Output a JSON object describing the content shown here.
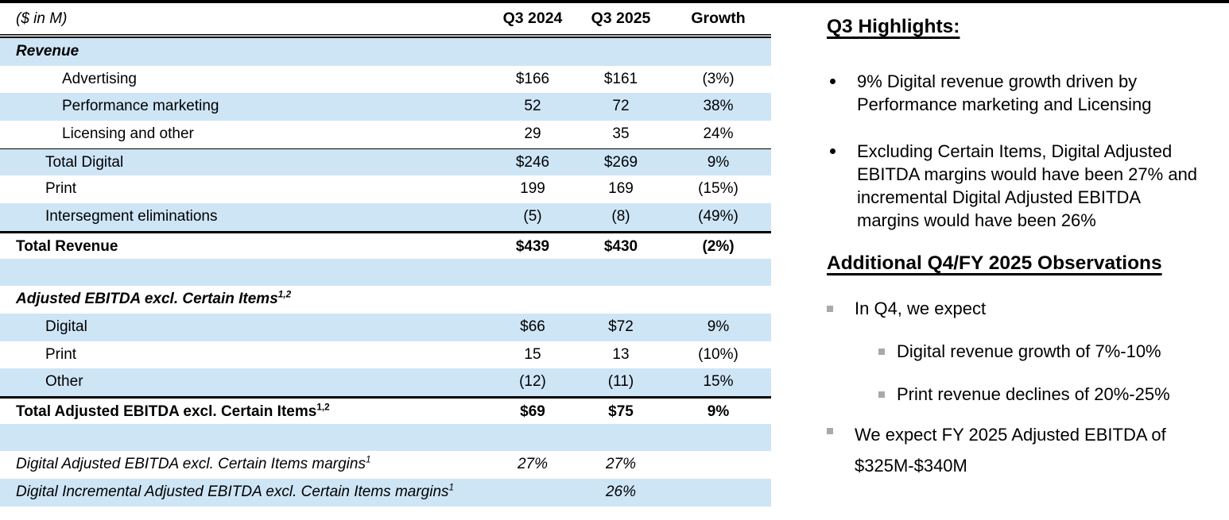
{
  "page": {
    "top_bar_color": "#000000",
    "background": "#ffffff"
  },
  "table": {
    "note": "($ in M)",
    "columns": [
      "Q3 2024",
      "Q3 2025",
      "Growth"
    ],
    "colors": {
      "stripe": "#cee5f6",
      "line": "#000000"
    },
    "rows": [
      {
        "label": "Revenue",
        "sup": "",
        "indent": 0,
        "bg": "blue",
        "style": "bold-italic",
        "border_top": "none",
        "values": [
          "",
          "",
          ""
        ]
      },
      {
        "label": "Advertising",
        "sup": "",
        "indent": 2,
        "bg": "white",
        "style": "normal",
        "border_top": "none",
        "values": [
          "$166",
          "$161",
          "(3%)"
        ]
      },
      {
        "label": "Performance marketing",
        "sup": "",
        "indent": 2,
        "bg": "blue",
        "style": "normal",
        "border_top": "none",
        "values": [
          "52",
          "72",
          "38%"
        ]
      },
      {
        "label": "Licensing and other",
        "sup": "",
        "indent": 2,
        "bg": "white",
        "style": "normal",
        "border_top": "none",
        "values": [
          "29",
          "35",
          "24%"
        ]
      },
      {
        "label": "Total Digital",
        "sup": "",
        "indent": 1,
        "bg": "blue",
        "style": "normal",
        "border_top": "thin",
        "values": [
          "$246",
          "$269",
          "9%"
        ]
      },
      {
        "label": "Print",
        "sup": "",
        "indent": 1,
        "bg": "white",
        "style": "normal",
        "border_top": "none",
        "values": [
          "199",
          "169",
          "(15%)"
        ]
      },
      {
        "label": "Intersegment eliminations",
        "sup": "",
        "indent": 1,
        "bg": "blue",
        "style": "normal",
        "border_top": "none",
        "values": [
          "(5)",
          "(8)",
          "(49%)"
        ]
      },
      {
        "label": "Total Revenue",
        "sup": "",
        "indent": 0,
        "bg": "white",
        "style": "bold",
        "border_top": "thick",
        "values": [
          "$439",
          "$430",
          "(2%)"
        ]
      },
      {
        "label": "",
        "sup": "",
        "indent": 0,
        "bg": "blue",
        "style": "normal",
        "border_top": "none",
        "values": [
          "",
          "",
          ""
        ]
      },
      {
        "label": "Adjusted EBITDA excl. Certain Items",
        "sup": "1,2",
        "indent": 0,
        "bg": "white",
        "style": "bold-italic",
        "border_top": "none",
        "values": [
          "",
          "",
          ""
        ]
      },
      {
        "label": "Digital",
        "sup": "",
        "indent": 1,
        "bg": "blue",
        "style": "normal",
        "border_top": "none",
        "values": [
          "$66",
          "$72",
          "9%"
        ]
      },
      {
        "label": "Print",
        "sup": "",
        "indent": 1,
        "bg": "white",
        "style": "normal",
        "border_top": "none",
        "values": [
          "15",
          "13",
          "(10%)"
        ]
      },
      {
        "label": "Other",
        "sup": "",
        "indent": 1,
        "bg": "blue",
        "style": "normal",
        "border_top": "none",
        "values": [
          "(12)",
          "(11)",
          "15%"
        ]
      },
      {
        "label": "Total Adjusted EBITDA excl. Certain Items",
        "sup": "1,2",
        "indent": 0,
        "bg": "white",
        "style": "bold",
        "border_top": "thick",
        "values": [
          "$69",
          "$75",
          "9%"
        ]
      },
      {
        "label": "",
        "sup": "",
        "indent": 0,
        "bg": "blue",
        "style": "normal",
        "border_top": "none",
        "values": [
          "",
          "",
          ""
        ]
      },
      {
        "label": "Digital Adjusted EBITDA excl. Certain Items margins",
        "sup": "1",
        "indent": 0,
        "bg": "white",
        "style": "italic",
        "border_top": "none",
        "values": [
          "27%",
          "27%",
          ""
        ]
      },
      {
        "label": "Digital Incremental Adjusted EBITDA excl. Certain Items margins",
        "sup": "1",
        "indent": 0,
        "bg": "blue",
        "style": "italic",
        "border_top": "none",
        "values": [
          "",
          "26%",
          ""
        ]
      }
    ]
  },
  "highlights": {
    "title": "Q3 Highlights:",
    "bullets": [
      {
        "lines": [
          "9% Digital revenue growth driven by",
          "Performance marketing and Licensing"
        ]
      },
      {
        "lines": [
          "Excluding Certain Items, Digital Adjusted",
          "EBITDA margins would have been 27% and",
          "incremental Digital Adjusted EBITDA",
          "margins would have been 26%"
        ]
      }
    ]
  },
  "observations": {
    "title": "Additional Q4/FY 2025 Observations",
    "bullet_color": "#a9a9a9",
    "items": [
      {
        "lines": [
          "In Q4, we expect"
        ]
      },
      {
        "lines": [
          "Digital revenue growth of 7%-10%"
        ]
      },
      {
        "lines": [
          "Print revenue declines of 20%-25%"
        ]
      },
      {
        "lines": [
          "We expect FY 2025 Adjusted EBITDA of",
          "$325M-$340M"
        ]
      }
    ]
  }
}
